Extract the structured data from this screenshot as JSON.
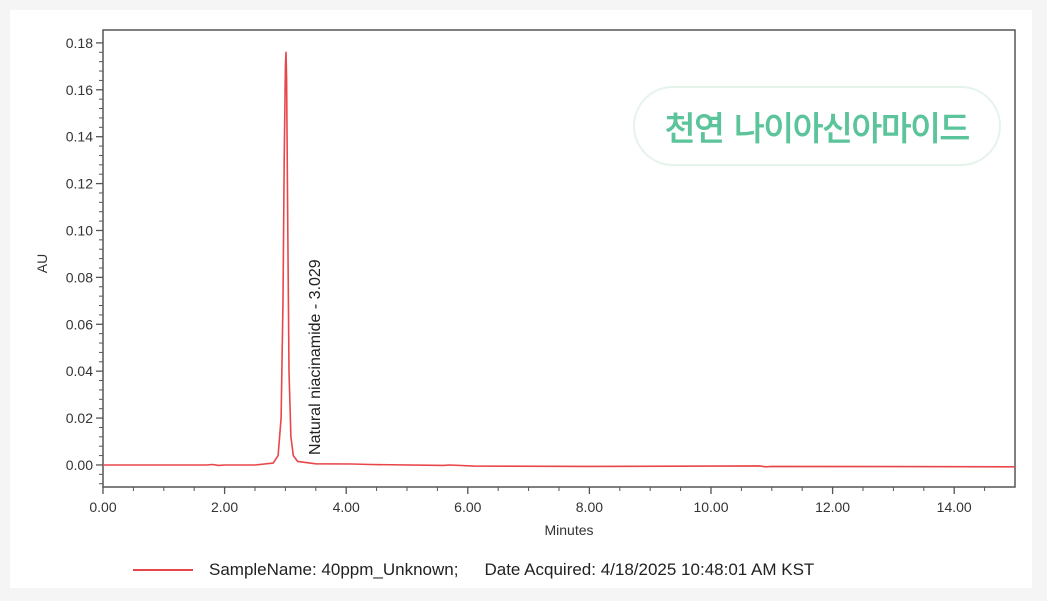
{
  "badge": {
    "text": "천연 나이아신아마이드",
    "color": "#5bc49a"
  },
  "chart_data": {
    "type": "line",
    "title": "",
    "xlabel": "Minutes",
    "ylabel": "AU",
    "xlim": [
      0,
      15
    ],
    "ylim": [
      -0.0094,
      0.1855
    ],
    "xticks": [
      0,
      2,
      4,
      6,
      8,
      10,
      12,
      14
    ],
    "xtick_labels": [
      "0.00",
      "2.00",
      "4.00",
      "6.00",
      "8.00",
      "10.00",
      "12.00",
      "14.00"
    ],
    "yticks": [
      0,
      0.02,
      0.04,
      0.06,
      0.08,
      0.1,
      0.12,
      0.14,
      0.16,
      0.18
    ],
    "ytick_labels": [
      "0.00",
      "0.02",
      "0.04",
      "0.06",
      "0.08",
      "0.10",
      "0.12",
      "0.14",
      "0.16",
      "0.18"
    ],
    "grid": false,
    "legend_position": "bottom",
    "series": [
      {
        "name": "SampleName: 40ppm_Unknown;",
        "color": "#e8474a",
        "x": [
          0,
          1.7,
          1.8,
          1.9,
          2.0,
          2.5,
          2.8,
          2.88,
          2.93,
          2.96,
          2.98,
          3.0,
          3.01,
          3.02,
          3.04,
          3.06,
          3.09,
          3.13,
          3.2,
          3.5,
          4.1,
          4.4,
          5.6,
          5.7,
          6.1,
          8.0,
          10.8,
          10.9,
          11.0,
          13.0,
          15.0
        ],
        "y": [
          0,
          0,
          0.0002,
          -0.0002,
          0,
          0,
          0.0008,
          0.004,
          0.02,
          0.07,
          0.13,
          0.17,
          0.176,
          0.165,
          0.1,
          0.04,
          0.012,
          0.004,
          0.0015,
          0.0005,
          0.0004,
          0.0002,
          -0.0002,
          0,
          -0.0005,
          -0.0006,
          -0.0004,
          -0.0008,
          -0.0006,
          -0.0007,
          -0.0008
        ]
      }
    ],
    "annotations": [
      {
        "text": "Natural niacinamide - 3.029",
        "x": 3.029
      }
    ],
    "legend_text": {
      "sample": "SampleName: 40ppm_Unknown;",
      "date": "Date Acquired: 4/18/2025 10:48:01 AM KST"
    }
  }
}
